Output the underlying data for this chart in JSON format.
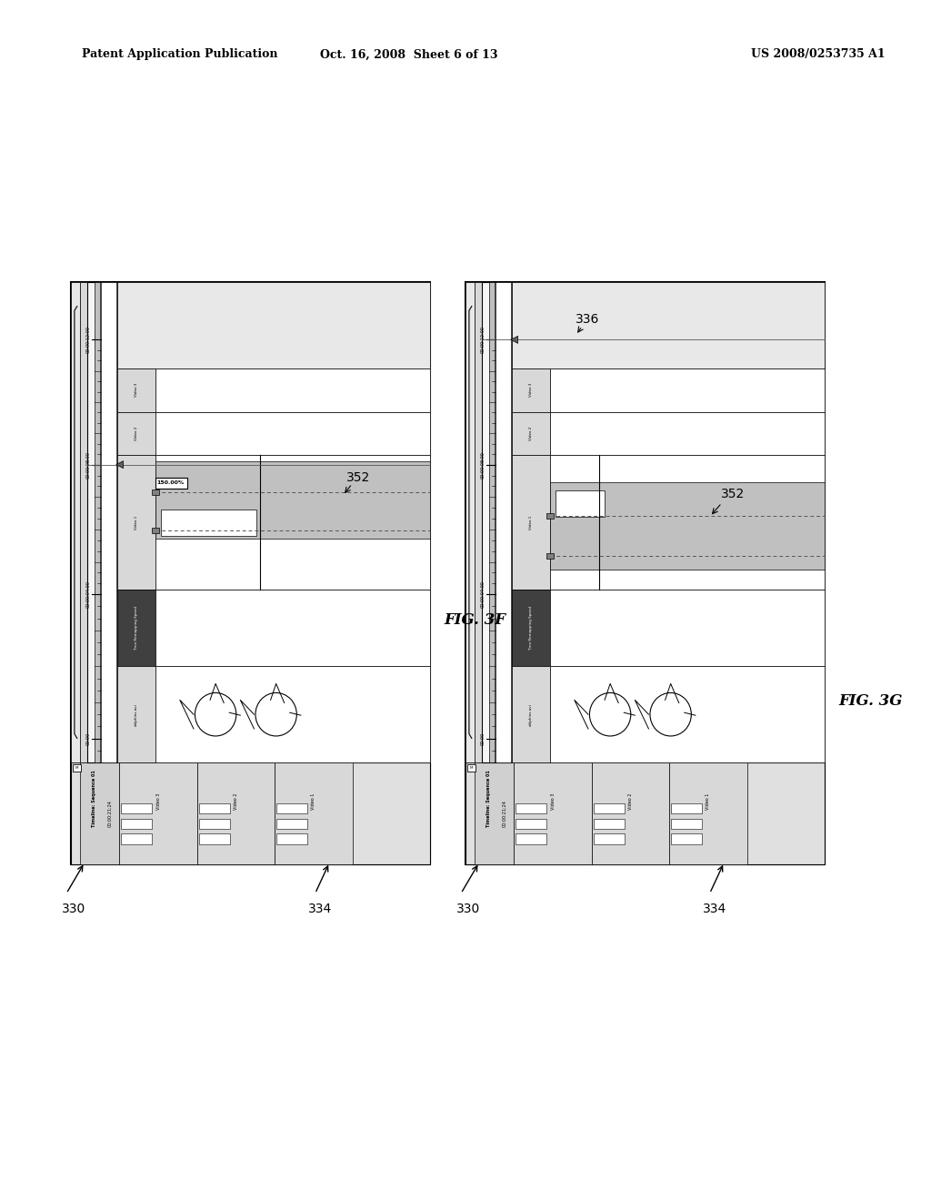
{
  "title_left": "Patent Application Publication",
  "title_center": "Oct. 16, 2008  Sheet 6 of 13",
  "title_right": "US 2008/0253735 A1",
  "fig_label_left": "FIG. 3F",
  "fig_label_right": "FIG. 3G",
  "bg_color": "#ffffff",
  "bc": "#000000",
  "gray_fill": "#c0c0c0",
  "mid_gray": "#b0b0b0",
  "light_gray": "#e8e8e8",
  "ruler_bg": "#f0f0f0",
  "ctrl_bg": "#d8d8d8",
  "track_label_bg": "#d4d4d4",
  "label_330": "330",
  "label_334": "334",
  "label_336": "336",
  "label_352": "352",
  "speed_text": "150.00%",
  "seq_text": "Timeline: Sequence 01",
  "timecode_text": "00:00:21;24",
  "time_labels": [
    "00:00",
    "00:00:04:00",
    "00:00:08:00",
    "00:00:12:00"
  ],
  "track_dolphins": "dolphins.avi",
  "track_time_remap": "Time Remapping Speed",
  "track_v1": "Video 1",
  "track_v2": "Video 2",
  "track_v3": "Video 3"
}
